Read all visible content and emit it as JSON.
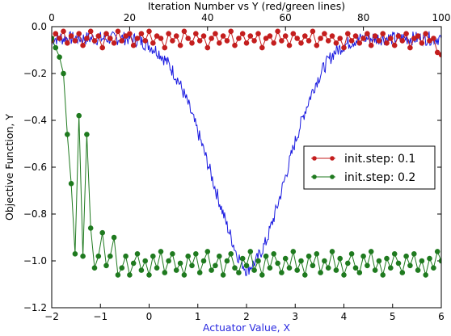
{
  "chart_data": {
    "type": "line",
    "title": "Iteration Number vs Y (red/green lines)",
    "xlabel": "Actuator Value, X",
    "ylabel": "Objective Function, Y",
    "xlim": [
      -2,
      6
    ],
    "ylim": [
      -1.2,
      0.0
    ],
    "top_xlim": [
      0,
      100
    ],
    "xticks": [
      -2,
      -1,
      0,
      1,
      2,
      3,
      4,
      5,
      6
    ],
    "yticks": [
      0.0,
      -0.2,
      -0.4,
      -0.6,
      -0.8,
      -1.0,
      -1.2
    ],
    "yticks_labels": [
      "0.0",
      "−0.2",
      "−0.4",
      "−0.6",
      "−0.8",
      "−1.0",
      "−1.2"
    ],
    "xticks_labels": [
      "−2",
      "−1",
      "0",
      "1",
      "2",
      "3",
      "4",
      "5",
      "6"
    ],
    "top_xticks": [
      0,
      20,
      40,
      60,
      80,
      100
    ],
    "grid": false,
    "legend_placement": "center-right",
    "colors": {
      "red": "#c41e1e",
      "green": "#1f7a1f",
      "blue": "#1a1ae0",
      "xlabel": "#2a2ae0"
    },
    "series": [
      {
        "name": "init.step: 0.1",
        "axis": "top",
        "color": "#c41e1e",
        "x": [
          0,
          1,
          2,
          3,
          4,
          5,
          6,
          7,
          8,
          9,
          10,
          11,
          12,
          13,
          14,
          15,
          16,
          17,
          18,
          19,
          20,
          21,
          22,
          23,
          24,
          25,
          26,
          27,
          28,
          29,
          30,
          31,
          32,
          33,
          34,
          35,
          36,
          37,
          38,
          39,
          40,
          41,
          42,
          43,
          44,
          45,
          46,
          47,
          48,
          49,
          50,
          51,
          52,
          53,
          54,
          55,
          56,
          57,
          58,
          59,
          60,
          61,
          62,
          63,
          64,
          65,
          66,
          67,
          68,
          69,
          70,
          71,
          72,
          73,
          74,
          75,
          76,
          77,
          78,
          79,
          80,
          81,
          82,
          83,
          84,
          85,
          86,
          87,
          88,
          89,
          90,
          91,
          92,
          93,
          94,
          95,
          96,
          97,
          98,
          99,
          100
        ],
        "y": [
          -0.06,
          -0.03,
          -0.05,
          -0.02,
          -0.07,
          -0.04,
          -0.06,
          -0.03,
          -0.08,
          -0.05,
          -0.02,
          -0.06,
          -0.04,
          -0.09,
          -0.03,
          -0.05,
          -0.07,
          -0.02,
          -0.06,
          -0.04,
          -0.03,
          -0.08,
          -0.05,
          -0.03,
          -0.06,
          -0.02,
          -0.07,
          -0.04,
          -0.05,
          -0.09,
          -0.03,
          -0.06,
          -0.04,
          -0.08,
          -0.02,
          -0.05,
          -0.07,
          -0.03,
          -0.06,
          -0.04,
          -0.09,
          -0.05,
          -0.03,
          -0.07,
          -0.04,
          -0.06,
          -0.02,
          -0.08,
          -0.05,
          -0.03,
          -0.07,
          -0.04,
          -0.06,
          -0.03,
          -0.09,
          -0.05,
          -0.04,
          -0.07,
          -0.02,
          -0.06,
          -0.04,
          -0.08,
          -0.03,
          -0.05,
          -0.07,
          -0.04,
          -0.06,
          -0.02,
          -0.08,
          -0.05,
          -0.03,
          -0.06,
          -0.04,
          -0.07,
          -0.05,
          -0.09,
          -0.03,
          -0.06,
          -0.04,
          -0.07,
          -0.05,
          -0.03,
          -0.08,
          -0.04,
          -0.06,
          -0.03,
          -0.07,
          -0.05,
          -0.08,
          -0.04,
          -0.06,
          -0.03,
          -0.09,
          -0.05,
          -0.04,
          -0.07,
          -0.03,
          -0.06,
          -0.05,
          -0.11,
          -0.12
        ]
      },
      {
        "name": "init.step: 0.2",
        "axis": "top",
        "color": "#1f7a1f",
        "x": [
          0,
          1,
          2,
          3,
          4,
          5,
          6,
          7,
          8,
          9,
          10,
          11,
          12,
          13,
          14,
          15,
          16,
          17,
          18,
          19,
          20,
          21,
          22,
          23,
          24,
          25,
          26,
          27,
          28,
          29,
          30,
          31,
          32,
          33,
          34,
          35,
          36,
          37,
          38,
          39,
          40,
          41,
          42,
          43,
          44,
          45,
          46,
          47,
          48,
          49,
          50,
          51,
          52,
          53,
          54,
          55,
          56,
          57,
          58,
          59,
          60,
          61,
          62,
          63,
          64,
          65,
          66,
          67,
          68,
          69,
          70,
          71,
          72,
          73,
          74,
          75,
          76,
          77,
          78,
          79,
          80,
          81,
          82,
          83,
          84,
          85,
          86,
          87,
          88,
          89,
          90,
          91,
          92,
          93,
          94,
          95,
          96,
          97,
          98,
          99,
          100
        ],
        "y": [
          -0.05,
          -0.09,
          -0.13,
          -0.2,
          -0.46,
          -0.67,
          -0.97,
          -0.38,
          -0.98,
          -0.46,
          -0.86,
          -1.03,
          -0.98,
          -0.88,
          -1.02,
          -0.98,
          -0.9,
          -1.06,
          -1.03,
          -0.98,
          -1.06,
          -1.01,
          -0.97,
          -1.04,
          -1.0,
          -1.06,
          -0.98,
          -1.03,
          -0.96,
          -1.05,
          -1.0,
          -0.97,
          -1.04,
          -1.01,
          -1.06,
          -0.98,
          -1.02,
          -0.97,
          -1.05,
          -1.0,
          -0.96,
          -1.04,
          -1.02,
          -0.98,
          -1.06,
          -1.0,
          -0.97,
          -1.03,
          -1.05,
          -0.99,
          -1.02,
          -0.96,
          -1.04,
          -1.0,
          -1.06,
          -0.98,
          -1.03,
          -0.97,
          -1.01,
          -1.05,
          -0.99,
          -1.03,
          -0.96,
          -1.04,
          -1.0,
          -1.06,
          -0.98,
          -1.02,
          -0.97,
          -1.05,
          -1.0,
          -1.03,
          -0.96,
          -1.04,
          -0.99,
          -1.06,
          -1.01,
          -0.97,
          -1.03,
          -1.05,
          -0.98,
          -1.02,
          -0.96,
          -1.04,
          -1.0,
          -1.06,
          -0.99,
          -1.03,
          -0.97,
          -1.01,
          -1.05,
          -0.98,
          -1.02,
          -0.97,
          -1.04,
          -1.0,
          -1.06,
          -0.99,
          -1.03,
          -0.96,
          -1.0
        ]
      },
      {
        "axis": "bottom",
        "color": "#1a1ae0",
        "x": [
          -2.0,
          -1.8,
          -1.6,
          -1.4,
          -1.2,
          -1.0,
          -0.8,
          -0.6,
          -0.4,
          -0.2,
          0.0,
          0.2,
          0.4,
          0.6,
          0.8,
          1.0,
          1.2,
          1.4,
          1.6,
          1.8,
          2.0,
          2.2,
          2.4,
          2.6,
          2.8,
          3.0,
          3.2,
          3.4,
          3.6,
          3.8,
          4.0,
          4.2,
          4.4,
          4.6,
          4.8,
          5.0,
          5.2,
          5.4,
          5.6,
          5.8,
          6.0
        ],
        "y": [
          -0.05,
          -0.05,
          -0.05,
          -0.05,
          -0.05,
          -0.05,
          -0.05,
          -0.05,
          -0.05,
          -0.06,
          -0.08,
          -0.11,
          -0.16,
          -0.23,
          -0.33,
          -0.45,
          -0.58,
          -0.72,
          -0.85,
          -0.97,
          -1.04,
          -1.0,
          -0.92,
          -0.79,
          -0.64,
          -0.49,
          -0.36,
          -0.25,
          -0.17,
          -0.11,
          -0.08,
          -0.06,
          -0.05,
          -0.05,
          -0.05,
          -0.05,
          -0.05,
          -0.05,
          -0.05,
          -0.05,
          -0.05
        ]
      }
    ]
  }
}
